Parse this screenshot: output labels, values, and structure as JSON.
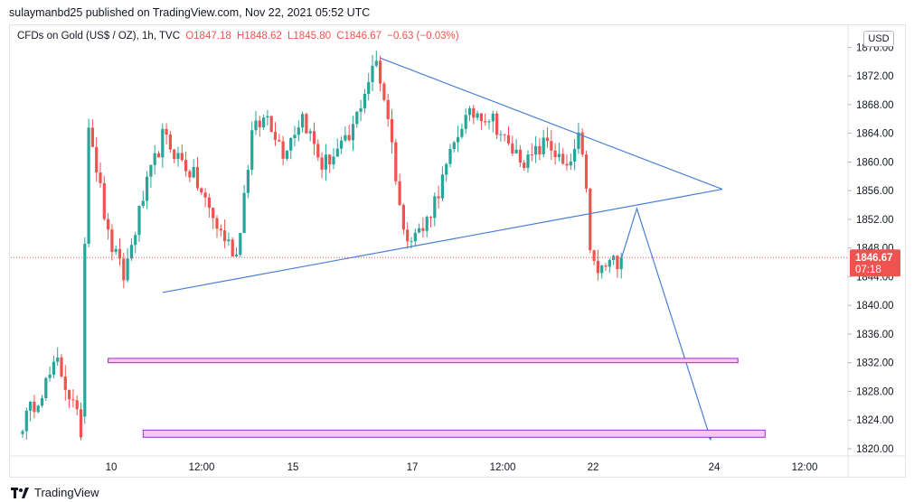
{
  "header": {
    "published_by": "sulaymanbd25 published on TradingView.com, Nov 22, 2021 05:52 UTC"
  },
  "legend": {
    "symbol": "CFDs on Gold (US$ / OZ), 1h, TVC",
    "open": "O1847.18",
    "high": "H1848.62",
    "low": "L1845.80",
    "close": "C1846.67",
    "change": "−0.63 (−0.03%)"
  },
  "currency_button": "USD",
  "footer": {
    "brand": "TradingView"
  },
  "chart_data": {
    "type": "candlestick",
    "symbol": "CFDs on Gold (US$ / OZ)",
    "interval": "1h",
    "y_ticks": [
      "1820.00",
      "1824.00",
      "1828.00",
      "1832.00",
      "1836.00",
      "1840.00",
      "1844.00",
      "1848.00",
      "1852.00",
      "1856.00",
      "1860.00",
      "1864.00",
      "1868.00",
      "1872.00",
      "1876.00"
    ],
    "x_ticks": [
      "10",
      "12:00",
      "15",
      "17",
      "12:00",
      "22",
      "24",
      "12:00"
    ],
    "ylim": [
      1818.5,
      1876.5
    ],
    "last_price": "1846.67",
    "countdown": "07:18",
    "colors": {
      "up": "#26a69a",
      "down": "#ef5350",
      "drawing": "#4a7fd4",
      "zone_border": "#a02cc8",
      "zone_fill": "#f6c9f1",
      "price_line": "#ef5350"
    },
    "key_points": [
      {
        "t": 0,
        "price": 1823.5
      },
      {
        "t": 9,
        "price": 1832.0
      },
      {
        "t": 13,
        "price": 1826.0
      },
      {
        "t": 15,
        "price": 1822.5
      },
      {
        "t": 16,
        "price": 1849.0
      },
      {
        "t": 17,
        "price": 1866.0
      },
      {
        "t": 22,
        "price": 1849.5
      },
      {
        "t": 26,
        "price": 1844.0
      },
      {
        "t": 31,
        "price": 1855.0
      },
      {
        "t": 36,
        "price": 1863.5
      },
      {
        "t": 44,
        "price": 1858.0
      },
      {
        "t": 50,
        "price": 1851.0
      },
      {
        "t": 55,
        "price": 1847.0
      },
      {
        "t": 59,
        "price": 1864.0
      },
      {
        "t": 63,
        "price": 1866.5
      },
      {
        "t": 67,
        "price": 1861.5
      },
      {
        "t": 72,
        "price": 1866.5
      },
      {
        "t": 77,
        "price": 1859.5
      },
      {
        "t": 84,
        "price": 1863.0
      },
      {
        "t": 88,
        "price": 1870.0
      },
      {
        "t": 91,
        "price": 1874.0
      },
      {
        "t": 94,
        "price": 1866.5
      },
      {
        "t": 98,
        "price": 1850.0
      },
      {
        "t": 103,
        "price": 1850.5
      },
      {
        "t": 108,
        "price": 1857.5
      },
      {
        "t": 113,
        "price": 1865.5
      },
      {
        "t": 117,
        "price": 1867.0
      },
      {
        "t": 121,
        "price": 1866.0
      },
      {
        "t": 125,
        "price": 1862.0
      },
      {
        "t": 130,
        "price": 1860.0
      },
      {
        "t": 135,
        "price": 1863.0
      },
      {
        "t": 140,
        "price": 1858.5
      },
      {
        "t": 143,
        "price": 1863.0
      },
      {
        "t": 145,
        "price": 1857.0
      },
      {
        "t": 146,
        "price": 1847.0
      },
      {
        "t": 148,
        "price": 1844.5
      },
      {
        "t": 150,
        "price": 1845.5
      },
      {
        "t": 152,
        "price": 1846.0
      },
      {
        "t": 154,
        "price": 1846.7
      }
    ],
    "drawings": {
      "triangle_upper": [
        {
          "t": 92,
          "price": 1874.5
        },
        {
          "t": 180,
          "price": 1856.2
        }
      ],
      "triangle_lower": [
        {
          "t": 36,
          "price": 1841.8
        },
        {
          "t": 180,
          "price": 1856.2
        }
      ],
      "zigzag": [
        {
          "t": 154,
          "price": 1846.5
        },
        {
          "t": 158,
          "price": 1853.5
        },
        {
          "t": 177,
          "price": 1821.3
        }
      ],
      "zone_upper": {
        "t_start": 22,
        "t_end": 184,
        "price_high": 1832.6,
        "price_low": 1832.0
      },
      "zone_lower": {
        "t_start": 31,
        "t_end": 191,
        "price_high": 1822.6,
        "price_low": 1821.6
      }
    }
  }
}
